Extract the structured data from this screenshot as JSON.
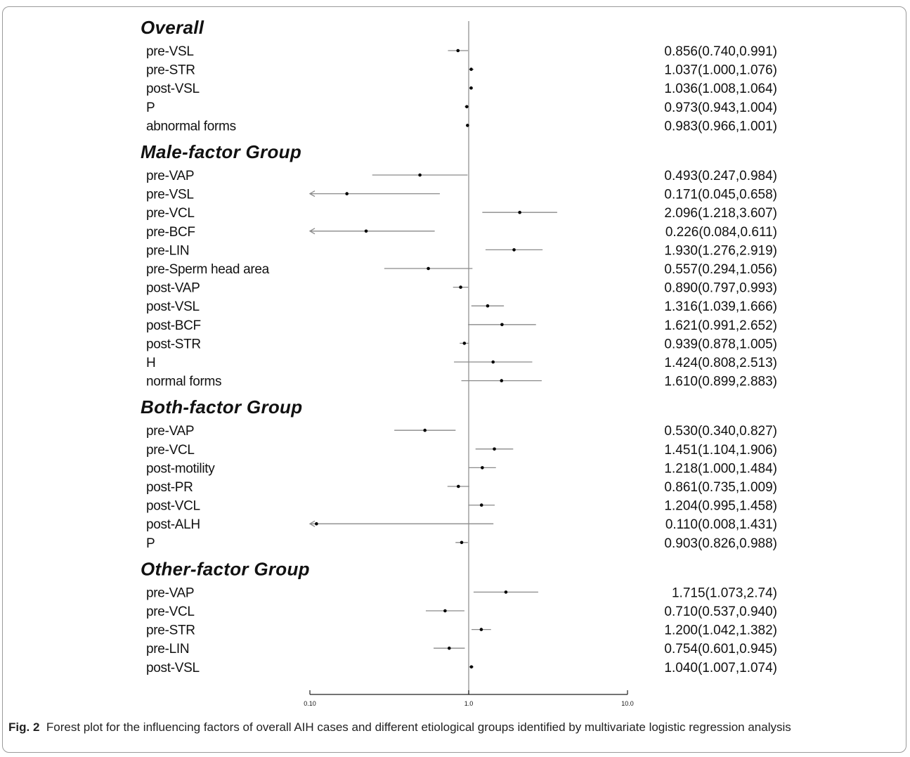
{
  "caption": {
    "label": "Fig. 2",
    "text": "Forest plot for the influencing factors of overall AIH cases and different etiological groups identified by multivariate logistic regression analysis"
  },
  "colors": {
    "line": "#8a8a8a",
    "axis": "#9a9a9a",
    "point": "#000000",
    "text": "#111111",
    "arrow": "#8a8a8a"
  },
  "chart_data": {
    "type": "forest",
    "x_scale": "log",
    "xlim": [
      0.1,
      10.0
    ],
    "x_ticks": [
      "0.10",
      "1.0",
      "10.0"
    ],
    "reference_line": 1.0,
    "groups": [
      {
        "name": "Overall",
        "rows": [
          {
            "label": "pre-VSL",
            "or": 0.856,
            "lo": 0.74,
            "hi": 0.991,
            "text": "0.856(0.740,0.991)"
          },
          {
            "label": "pre-STR",
            "or": 1.037,
            "lo": 1.0,
            "hi": 1.076,
            "text": "1.037(1.000,1.076)"
          },
          {
            "label": "post-VSL",
            "or": 1.036,
            "lo": 1.008,
            "hi": 1.064,
            "text": "1.036(1.008,1.064)"
          },
          {
            "label": "P",
            "or": 0.973,
            "lo": 0.943,
            "hi": 1.004,
            "text": "0.973(0.943,1.004)"
          },
          {
            "label": "abnormal forms",
            "or": 0.983,
            "lo": 0.966,
            "hi": 1.001,
            "text": "0.983(0.966,1.001)"
          }
        ]
      },
      {
        "name": "Male-factor Group",
        "rows": [
          {
            "label": "pre-VAP",
            "or": 0.493,
            "lo": 0.247,
            "hi": 0.984,
            "text": "0.493(0.247,0.984)"
          },
          {
            "label": "pre-VSL",
            "or": 0.171,
            "lo": 0.045,
            "hi": 0.658,
            "text": "0.171(0.045,0.658)"
          },
          {
            "label": "pre-VCL",
            "or": 2.096,
            "lo": 1.218,
            "hi": 3.607,
            "text": "2.096(1.218,3.607)"
          },
          {
            "label": "pre-BCF",
            "or": 0.226,
            "lo": 0.084,
            "hi": 0.611,
            "text": "0.226(0.084,0.611)"
          },
          {
            "label": "pre-LIN",
            "or": 1.93,
            "lo": 1.276,
            "hi": 2.919,
            "text": "1.930(1.276,2.919)"
          },
          {
            "label": "pre-Sperm head area",
            "or": 0.557,
            "lo": 0.294,
            "hi": 1.056,
            "text": "0.557(0.294,1.056)"
          },
          {
            "label": "post-VAP",
            "or": 0.89,
            "lo": 0.797,
            "hi": 0.993,
            "text": "0.890(0.797,0.993)"
          },
          {
            "label": "post-VSL",
            "or": 1.316,
            "lo": 1.039,
            "hi": 1.666,
            "text": "1.316(1.039,1.666)"
          },
          {
            "label": "post-BCF",
            "or": 1.621,
            "lo": 0.991,
            "hi": 2.652,
            "text": "1.621(0.991,2.652)"
          },
          {
            "label": "post-STR",
            "or": 0.939,
            "lo": 0.878,
            "hi": 1.005,
            "text": "0.939(0.878,1.005)"
          },
          {
            "label": "H",
            "or": 1.424,
            "lo": 0.808,
            "hi": 2.513,
            "text": "1.424(0.808,2.513)"
          },
          {
            "label": "normal forms",
            "or": 1.61,
            "lo": 0.899,
            "hi": 2.883,
            "text": "1.610(0.899,2.883)"
          }
        ]
      },
      {
        "name": "Both-factor Group",
        "rows": [
          {
            "label": "pre-VAP",
            "or": 0.53,
            "lo": 0.34,
            "hi": 0.827,
            "text": "0.530(0.340,0.827)"
          },
          {
            "label": "pre-VCL",
            "or": 1.451,
            "lo": 1.104,
            "hi": 1.906,
            "text": "1.451(1.104,1.906)"
          },
          {
            "label": "post-motility",
            "or": 1.218,
            "lo": 1.0,
            "hi": 1.484,
            "text": "1.218(1.000,1.484)"
          },
          {
            "label": "post-PR",
            "or": 0.861,
            "lo": 0.735,
            "hi": 1.009,
            "text": "0.861(0.735,1.009)"
          },
          {
            "label": "post-VCL",
            "or": 1.204,
            "lo": 0.995,
            "hi": 1.458,
            "text": "1.204(0.995,1.458)"
          },
          {
            "label": "post-ALH",
            "or": 0.11,
            "lo": 0.008,
            "hi": 1.431,
            "text": "0.110(0.008,1.431)"
          },
          {
            "label": "P",
            "or": 0.903,
            "lo": 0.826,
            "hi": 0.988,
            "text": "0.903(0.826,0.988)"
          }
        ]
      },
      {
        "name": "Other-factor Group",
        "rows": [
          {
            "label": "pre-VAP",
            "or": 1.715,
            "lo": 1.073,
            "hi": 2.74,
            "text": "1.715(1.073,2.74)"
          },
          {
            "label": "pre-VCL",
            "or": 0.71,
            "lo": 0.537,
            "hi": 0.94,
            "text": "0.710(0.537,0.940)"
          },
          {
            "label": "pre-STR",
            "or": 1.2,
            "lo": 1.042,
            "hi": 1.382,
            "text": "1.200(1.042,1.382)"
          },
          {
            "label": "pre-LIN",
            "or": 0.754,
            "lo": 0.601,
            "hi": 0.945,
            "text": "0.754(0.601,0.945)"
          },
          {
            "label": "post-VSL",
            "or": 1.04,
            "lo": 1.007,
            "hi": 1.074,
            "text": "1.040(1.007,1.074)"
          }
        ]
      }
    ]
  }
}
